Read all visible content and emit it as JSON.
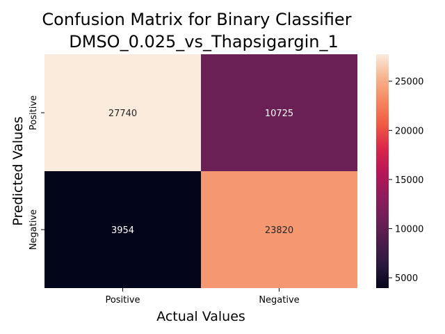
{
  "chart_data": {
    "type": "heatmap",
    "title_lines": [
      "Confusion Matrix for Binary Classifier",
      "DMSO_0.025_vs_Thapsigargin_1"
    ],
    "xlabel": "Actual Values",
    "ylabel": "Predicted Values",
    "x_categories": [
      "Positive",
      "Negative"
    ],
    "y_categories": [
      "Positive",
      "Negative"
    ],
    "values": [
      [
        27740,
        10725
      ],
      [
        3954,
        23820
      ]
    ],
    "colorbar": {
      "range": [
        3954,
        27740
      ],
      "ticks": [
        5000,
        10000,
        15000,
        20000,
        25000
      ],
      "colormap": "rocket"
    },
    "grid": false,
    "legend": "colorbar-right"
  }
}
